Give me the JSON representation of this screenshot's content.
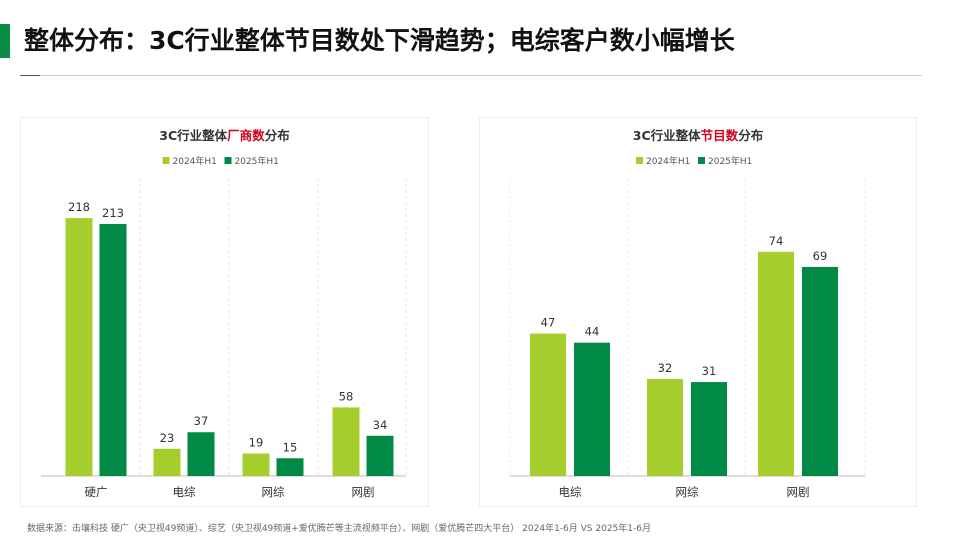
{
  "title": "整体分布：3C行业整体节目数处下滑趋势；电综客户数小幅增长",
  "source": "数据来源：击壤科技 硬广（央卫视49频道）、综艺（央卫视49频道+爱优腾芒等主流视频平台）、网剧（爱优腾芒四大平台） 2024年1-6月 VS 2025年1-6月",
  "colors": {
    "s2024": "#a5cd2c",
    "s2025": "#008a45",
    "highlight": "#d0021b",
    "accent": "#0a8c45"
  },
  "chart_data": [
    {
      "type": "bar",
      "title_pre": "3C行业整体",
      "title_hl": "厂商数",
      "title_post": "分布",
      "legend_position": "top",
      "categories": [
        "硬广",
        "电综",
        "网综",
        "网剧"
      ],
      "series": [
        {
          "name": "2024年H1",
          "values": [
            218,
            23,
            19,
            58
          ]
        },
        {
          "name": "2025年H1",
          "values": [
            213,
            37,
            15,
            34
          ]
        }
      ]
    },
    {
      "type": "bar",
      "title_pre": "3C行业整体",
      "title_hl": "节目数",
      "title_post": "分布",
      "legend_position": "top",
      "categories": [
        "电综",
        "网综",
        "网剧"
      ],
      "series": [
        {
          "name": "2024年H1",
          "values": [
            47,
            32,
            74
          ]
        },
        {
          "name": "2025年H1",
          "values": [
            44,
            31,
            69
          ]
        }
      ]
    }
  ]
}
